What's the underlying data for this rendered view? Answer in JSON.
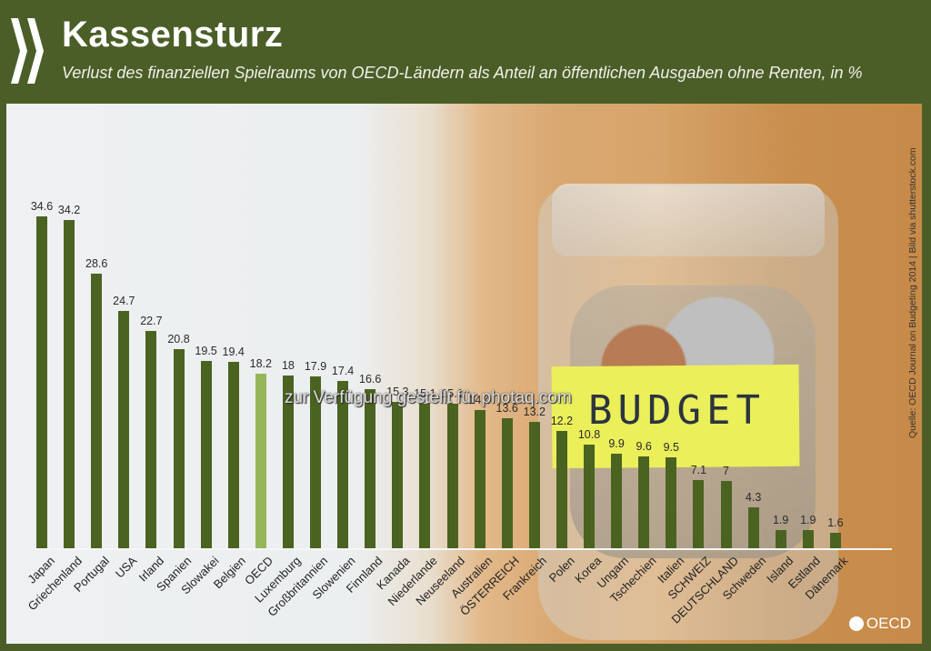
{
  "header": {
    "title": "Kassensturz",
    "subtitle": "Verlust des finanziellen Spielraums von OECD-Ländern als Anteil an öffentlichen Ausgaben ohne Renten, in %"
  },
  "source": "Quelle: OECD Journal on Budgeting 2014 | Bild via shutterstock.com",
  "watermark": "zur Verfügung gestellt für photaq.com",
  "photo": {
    "sticky_note": "BUDGET"
  },
  "logo": {
    "text": "OECD"
  },
  "colors": {
    "bar": "#4b6321",
    "highlight": "#95b75a",
    "header_bg": "#4b5e28"
  },
  "chart_data": {
    "type": "bar",
    "title": "Kassensturz",
    "subtitle": "Verlust des finanziellen Spielraums von OECD-Ländern als Anteil an öffentlichen Ausgaben ohne Renten, in %",
    "xlabel": "",
    "ylabel": "%",
    "grid": false,
    "highlight": "OECD",
    "categories": [
      "Japan",
      "Griechenland",
      "Portugal",
      "USA",
      "Irland",
      "Spanien",
      "Slowakei",
      "Belgien",
      "OECD",
      "Luxemburg",
      "Großbritannien",
      "Slowenien",
      "Finnland",
      "Kanada",
      "Niederlande",
      "Neuseeland",
      "Australien",
      "ÖSTERREICH",
      "Frankreich",
      "Polen",
      "Korea",
      "Ungarn",
      "Tschechien",
      "Italien",
      "SCHWEIZ",
      "DEUTSCHLAND",
      "Schweden",
      "Island",
      "Estland",
      "Dänemark"
    ],
    "values": [
      34.6,
      34.2,
      28.6,
      24.7,
      22.7,
      20.8,
      19.5,
      19.4,
      18.2,
      18,
      17.9,
      17.4,
      16.6,
      15.3,
      15.1,
      15.1,
      14.4,
      13.6,
      13.2,
      12.2,
      10.8,
      9.9,
      9.6,
      9.5,
      7.1,
      7,
      4.3,
      1.9,
      1.9,
      1.6
    ],
    "labels": [
      "34.6",
      "34.2",
      "28.6",
      "24.7",
      "22.7",
      "20.8",
      "19.5",
      "19.4",
      "18.2",
      "18",
      "17.9",
      "17.4",
      "16.6",
      "15.3",
      "15.1",
      "15.1",
      "14.4",
      "13.6",
      "13.2",
      "12.2",
      "10.8",
      "9.9",
      "9.6",
      "9.5",
      "7.1",
      "7",
      "4.3",
      "1.9",
      "1.9",
      "1.6"
    ]
  }
}
